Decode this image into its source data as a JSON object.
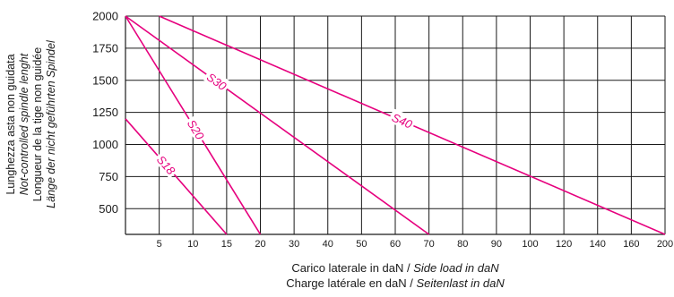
{
  "chart_data": {
    "type": "line",
    "ylabel": {
      "lines": [
        "Lunghezza asta non guidata",
        "Not-controlled spindle lenght",
        "Longueur de la tige non guidée",
        "Länge der nicht geführten Spindel"
      ]
    },
    "xlabel": {
      "line1_regular": "Carico laterale in daN / ",
      "line1_italic": "Side load in daN",
      "line2_regular": "Charge latérale en daN / ",
      "line2_italic": "Seitenlast in daN"
    },
    "x_ticks": [
      "5",
      "10",
      "15",
      "20",
      "30",
      "40",
      "50",
      "60",
      "70",
      "80",
      "90",
      "100",
      "120",
      "140",
      "160",
      "200"
    ],
    "y_ticks": [
      500,
      750,
      1000,
      1250,
      1500,
      1750,
      2000
    ],
    "ylim": [
      300,
      2000
    ],
    "grid": true,
    "line_color": "#e6007e",
    "series": [
      {
        "name": "S18",
        "points": [
          [
            0,
            1200
          ],
          [
            15,
            300
          ]
        ]
      },
      {
        "name": "S20",
        "points": [
          [
            0,
            2000
          ],
          [
            20,
            300
          ]
        ]
      },
      {
        "name": "S30",
        "points": [
          [
            0,
            2000
          ],
          [
            70,
            300
          ]
        ]
      },
      {
        "name": "S40",
        "points": [
          [
            5,
            2000
          ],
          [
            200,
            300
          ]
        ]
      }
    ]
  }
}
